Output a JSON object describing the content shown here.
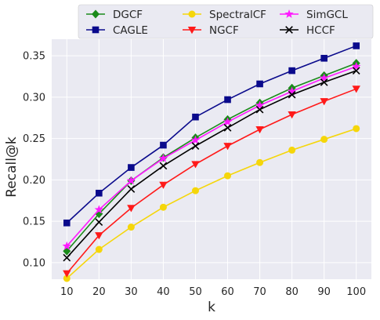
{
  "chart_data": {
    "type": "line",
    "xlabel": "k",
    "ylabel": "Recall@k",
    "x": [
      10,
      20,
      30,
      40,
      50,
      60,
      70,
      80,
      90,
      100
    ],
    "x_ticks": [
      "10",
      "20",
      "30",
      "40",
      "50",
      "60",
      "70",
      "80",
      "90",
      "100"
    ],
    "ylim": [
      0.08,
      0.37
    ],
    "y_ticks": [
      "0.10",
      "0.15",
      "0.20",
      "0.25",
      "0.30",
      "0.35"
    ],
    "grid": true,
    "legend_position": "top",
    "series": [
      {
        "name": "DGCF",
        "color": "#1a8a1a",
        "marker": "diamond",
        "values": [
          0.114,
          0.159,
          0.199,
          0.227,
          0.251,
          0.273,
          0.293,
          0.311,
          0.326,
          0.341
        ]
      },
      {
        "name": "CAGLE",
        "color": "#0a0a8c",
        "marker": "square",
        "values": [
          0.148,
          0.184,
          0.215,
          0.242,
          0.276,
          0.297,
          0.316,
          0.332,
          0.347,
          0.362
        ]
      },
      {
        "name": "SpectralCF",
        "color": "#f5d60a",
        "marker": "circle",
        "values": [
          0.081,
          0.116,
          0.143,
          0.167,
          0.187,
          0.205,
          0.221,
          0.236,
          0.249,
          0.262
        ]
      },
      {
        "name": "NGCF",
        "color": "#ff1a1a",
        "marker": "triangle-down",
        "values": [
          0.087,
          0.133,
          0.166,
          0.194,
          0.219,
          0.241,
          0.261,
          0.279,
          0.295,
          0.31
        ]
      },
      {
        "name": "SimGCL",
        "color": "#ff1aff",
        "marker": "star",
        "values": [
          0.12,
          0.164,
          0.199,
          0.226,
          0.248,
          0.27,
          0.29,
          0.307,
          0.323,
          0.337
        ]
      },
      {
        "name": "HCCF",
        "color": "#000000",
        "marker": "x",
        "values": [
          0.106,
          0.149,
          0.189,
          0.217,
          0.241,
          0.263,
          0.285,
          0.303,
          0.318,
          0.332
        ]
      }
    ]
  }
}
